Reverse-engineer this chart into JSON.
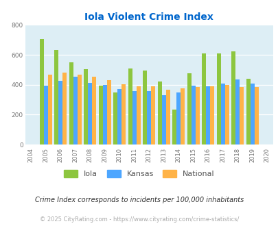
{
  "title": "Iola Violent Crime Index",
  "years": [
    2004,
    2005,
    2006,
    2007,
    2008,
    2009,
    2010,
    2011,
    2012,
    2013,
    2014,
    2015,
    2016,
    2017,
    2018,
    2019,
    2020
  ],
  "iola": [
    null,
    705,
    630,
    548,
    503,
    395,
    350,
    510,
    493,
    422,
    232,
    475,
    608,
    607,
    622,
    438,
    null
  ],
  "kansas": [
    null,
    393,
    427,
    452,
    411,
    398,
    370,
    357,
    356,
    330,
    350,
    395,
    390,
    408,
    435,
    410,
    null
  ],
  "national": [
    null,
    467,
    479,
    467,
    453,
    429,
    403,
    390,
    390,
    368,
    376,
    385,
    390,
    401,
    385,
    387,
    null
  ],
  "iola_color": "#8dc63f",
  "kansas_color": "#4da6ff",
  "national_color": "#ffb347",
  "bg_color": "#ddeef5",
  "title_color": "#0066cc",
  "ylim": [
    0,
    800
  ],
  "yticks": [
    0,
    200,
    400,
    600,
    800
  ],
  "footer_note": "Crime Index corresponds to incidents per 100,000 inhabitants",
  "copyright": "© 2025 CityRating.com - https://www.cityrating.com/crime-statistics/",
  "bar_width": 0.28
}
